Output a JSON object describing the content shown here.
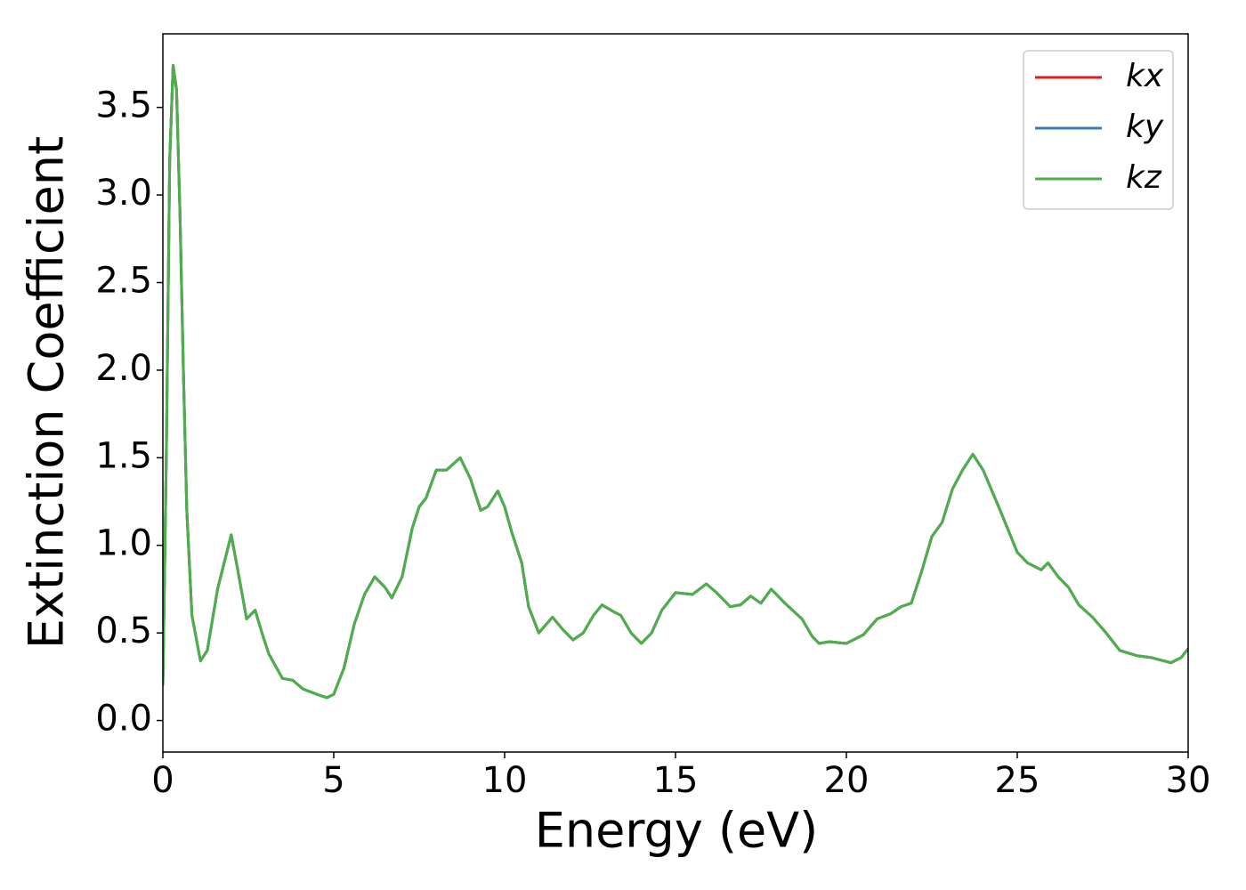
{
  "chart_data": {
    "type": "line",
    "xlabel": "Energy (eV)",
    "ylabel": "Extinction Coefficient",
    "x": [
      0,
      0.1,
      0.2,
      0.3,
      0.4,
      0.5,
      0.6,
      0.7,
      0.85,
      1.1,
      1.3,
      1.6,
      2.0,
      2.2,
      2.45,
      2.7,
      2.9,
      3.1,
      3.5,
      3.8,
      4.1,
      4.5,
      4.8,
      5.0,
      5.3,
      5.6,
      5.9,
      6.2,
      6.5,
      6.7,
      7.0,
      7.3,
      7.5,
      7.7,
      8.0,
      8.3,
      8.7,
      9.0,
      9.3,
      9.5,
      9.8,
      10.0,
      10.2,
      10.5,
      10.7,
      11.0,
      11.4,
      11.7,
      12.0,
      12.3,
      12.6,
      12.85,
      13.2,
      13.4,
      13.7,
      14.0,
      14.3,
      14.6,
      15.0,
      15.5,
      15.9,
      16.2,
      16.6,
      16.9,
      17.2,
      17.5,
      17.8,
      18.2,
      18.7,
      19.0,
      19.2,
      19.5,
      20.0,
      20.5,
      20.9,
      21.3,
      21.6,
      21.9,
      22.2,
      22.5,
      22.8,
      23.1,
      23.4,
      23.7,
      24.0,
      24.5,
      25.0,
      25.3,
      25.7,
      25.9,
      26.2,
      26.5,
      26.8,
      27.2,
      27.6,
      28.0,
      28.5,
      28.9,
      29.3,
      29.5,
      29.8,
      30.0
    ],
    "series": [
      {
        "name": "kx",
        "color": "#e41a1c",
        "values": [
          0.2,
          1.5,
          3.2,
          3.74,
          3.6,
          2.9,
          2.0,
          1.2,
          0.6,
          0.34,
          0.4,
          0.75,
          1.06,
          0.85,
          0.58,
          0.63,
          0.5,
          0.38,
          0.24,
          0.23,
          0.18,
          0.15,
          0.13,
          0.15,
          0.3,
          0.55,
          0.72,
          0.82,
          0.76,
          0.7,
          0.82,
          1.1,
          1.22,
          1.27,
          1.43,
          1.43,
          1.5,
          1.38,
          1.2,
          1.22,
          1.31,
          1.22,
          1.08,
          0.9,
          0.65,
          0.5,
          0.59,
          0.52,
          0.46,
          0.5,
          0.6,
          0.66,
          0.62,
          0.6,
          0.5,
          0.44,
          0.5,
          0.63,
          0.73,
          0.72,
          0.78,
          0.73,
          0.65,
          0.66,
          0.71,
          0.67,
          0.75,
          0.67,
          0.58,
          0.48,
          0.44,
          0.45,
          0.44,
          0.49,
          0.58,
          0.61,
          0.65,
          0.67,
          0.85,
          1.05,
          1.13,
          1.32,
          1.43,
          1.52,
          1.43,
          1.2,
          0.96,
          0.9,
          0.86,
          0.9,
          0.82,
          0.76,
          0.66,
          0.59,
          0.5,
          0.4,
          0.37,
          0.36,
          0.34,
          0.33,
          0.36,
          0.41
        ]
      },
      {
        "name": "ky",
        "color": "#377eb8",
        "values": [
          0.2,
          1.5,
          3.2,
          3.74,
          3.6,
          2.9,
          2.0,
          1.2,
          0.6,
          0.34,
          0.4,
          0.75,
          1.06,
          0.85,
          0.58,
          0.63,
          0.5,
          0.38,
          0.24,
          0.23,
          0.18,
          0.15,
          0.13,
          0.15,
          0.3,
          0.55,
          0.72,
          0.82,
          0.76,
          0.7,
          0.82,
          1.1,
          1.22,
          1.27,
          1.43,
          1.43,
          1.5,
          1.38,
          1.2,
          1.22,
          1.31,
          1.22,
          1.08,
          0.9,
          0.65,
          0.5,
          0.59,
          0.52,
          0.46,
          0.5,
          0.6,
          0.66,
          0.62,
          0.6,
          0.5,
          0.44,
          0.5,
          0.63,
          0.73,
          0.72,
          0.78,
          0.73,
          0.65,
          0.66,
          0.71,
          0.67,
          0.75,
          0.67,
          0.58,
          0.48,
          0.44,
          0.45,
          0.44,
          0.49,
          0.58,
          0.61,
          0.65,
          0.67,
          0.85,
          1.05,
          1.13,
          1.32,
          1.43,
          1.52,
          1.43,
          1.2,
          0.96,
          0.9,
          0.86,
          0.9,
          0.82,
          0.76,
          0.66,
          0.59,
          0.5,
          0.4,
          0.37,
          0.36,
          0.34,
          0.33,
          0.36,
          0.41
        ]
      },
      {
        "name": "kz",
        "color": "#4daf4a",
        "values": [
          0.2,
          1.5,
          3.2,
          3.74,
          3.6,
          2.9,
          2.0,
          1.2,
          0.6,
          0.34,
          0.4,
          0.75,
          1.06,
          0.85,
          0.58,
          0.63,
          0.5,
          0.38,
          0.24,
          0.23,
          0.18,
          0.15,
          0.13,
          0.15,
          0.3,
          0.55,
          0.72,
          0.82,
          0.76,
          0.7,
          0.82,
          1.1,
          1.22,
          1.27,
          1.43,
          1.43,
          1.5,
          1.38,
          1.2,
          1.22,
          1.31,
          1.22,
          1.08,
          0.9,
          0.65,
          0.5,
          0.59,
          0.52,
          0.46,
          0.5,
          0.6,
          0.66,
          0.62,
          0.6,
          0.5,
          0.44,
          0.5,
          0.63,
          0.73,
          0.72,
          0.78,
          0.73,
          0.65,
          0.66,
          0.71,
          0.67,
          0.75,
          0.67,
          0.58,
          0.48,
          0.44,
          0.45,
          0.44,
          0.49,
          0.58,
          0.61,
          0.65,
          0.67,
          0.85,
          1.05,
          1.13,
          1.32,
          1.43,
          1.52,
          1.43,
          1.2,
          0.96,
          0.9,
          0.86,
          0.9,
          0.82,
          0.76,
          0.66,
          0.59,
          0.5,
          0.4,
          0.37,
          0.36,
          0.34,
          0.33,
          0.36,
          0.41
        ]
      }
    ],
    "xlim": [
      0,
      30
    ],
    "xticks": [
      0,
      5,
      10,
      15,
      20,
      25,
      30
    ],
    "ylim": [
      -0.18,
      3.92
    ],
    "yticks": [
      {
        "value": 0,
        "label": "0.0"
      },
      0.5,
      {
        "value": 1,
        "label": "1.0"
      },
      1.5,
      {
        "value": 2,
        "label": "2.0"
      },
      2.5,
      {
        "value": 3,
        "label": "3.0"
      },
      3.5
    ],
    "legend": "upper right",
    "grid": false
  }
}
